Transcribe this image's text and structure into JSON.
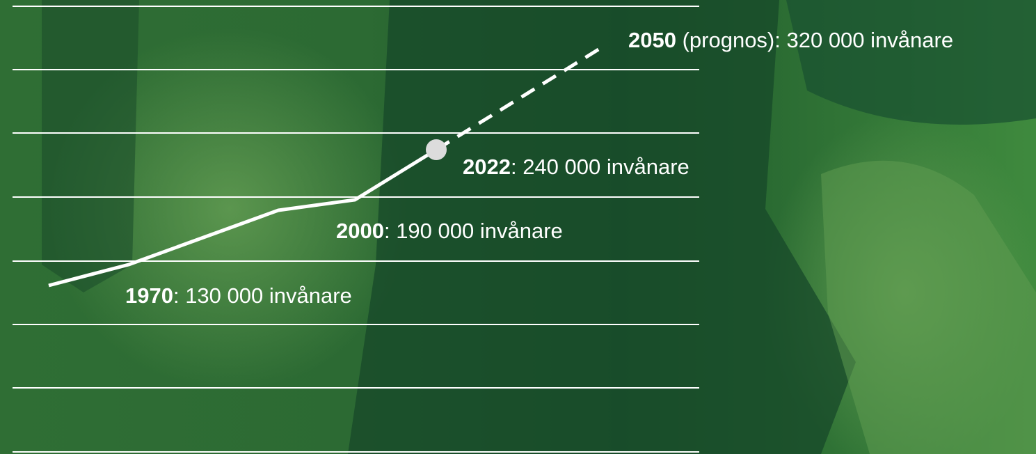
{
  "annotations": [
    {
      "year": "1970",
      "text": ": 130 000 invånare"
    },
    {
      "year": "2000",
      "text": ": 190 000 invånare"
    },
    {
      "year": "2022",
      "text": ": 240 000 invånare"
    },
    {
      "year": "2050",
      "text": " (prognos): 320 000 invånare"
    }
  ]
}
